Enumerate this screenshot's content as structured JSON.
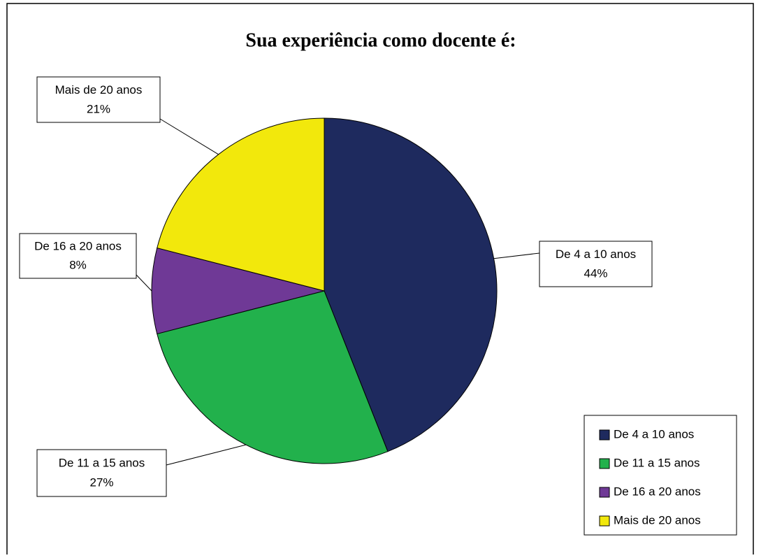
{
  "chart_data": {
    "type": "pie",
    "title": "Sua experiência como docente é:",
    "categories": [
      "De 4 a 10 anos",
      "De 11 a 15 anos",
      "De 16 a 20 anos",
      "Mais de 20 anos"
    ],
    "values": [
      44,
      27,
      8,
      21
    ],
    "value_labels": [
      "44%",
      "27%",
      "8%",
      "21%"
    ],
    "colors": [
      "#1e2a5e",
      "#22b14c",
      "#6f3996",
      "#f2e80c"
    ],
    "legend": "bottom-right"
  }
}
